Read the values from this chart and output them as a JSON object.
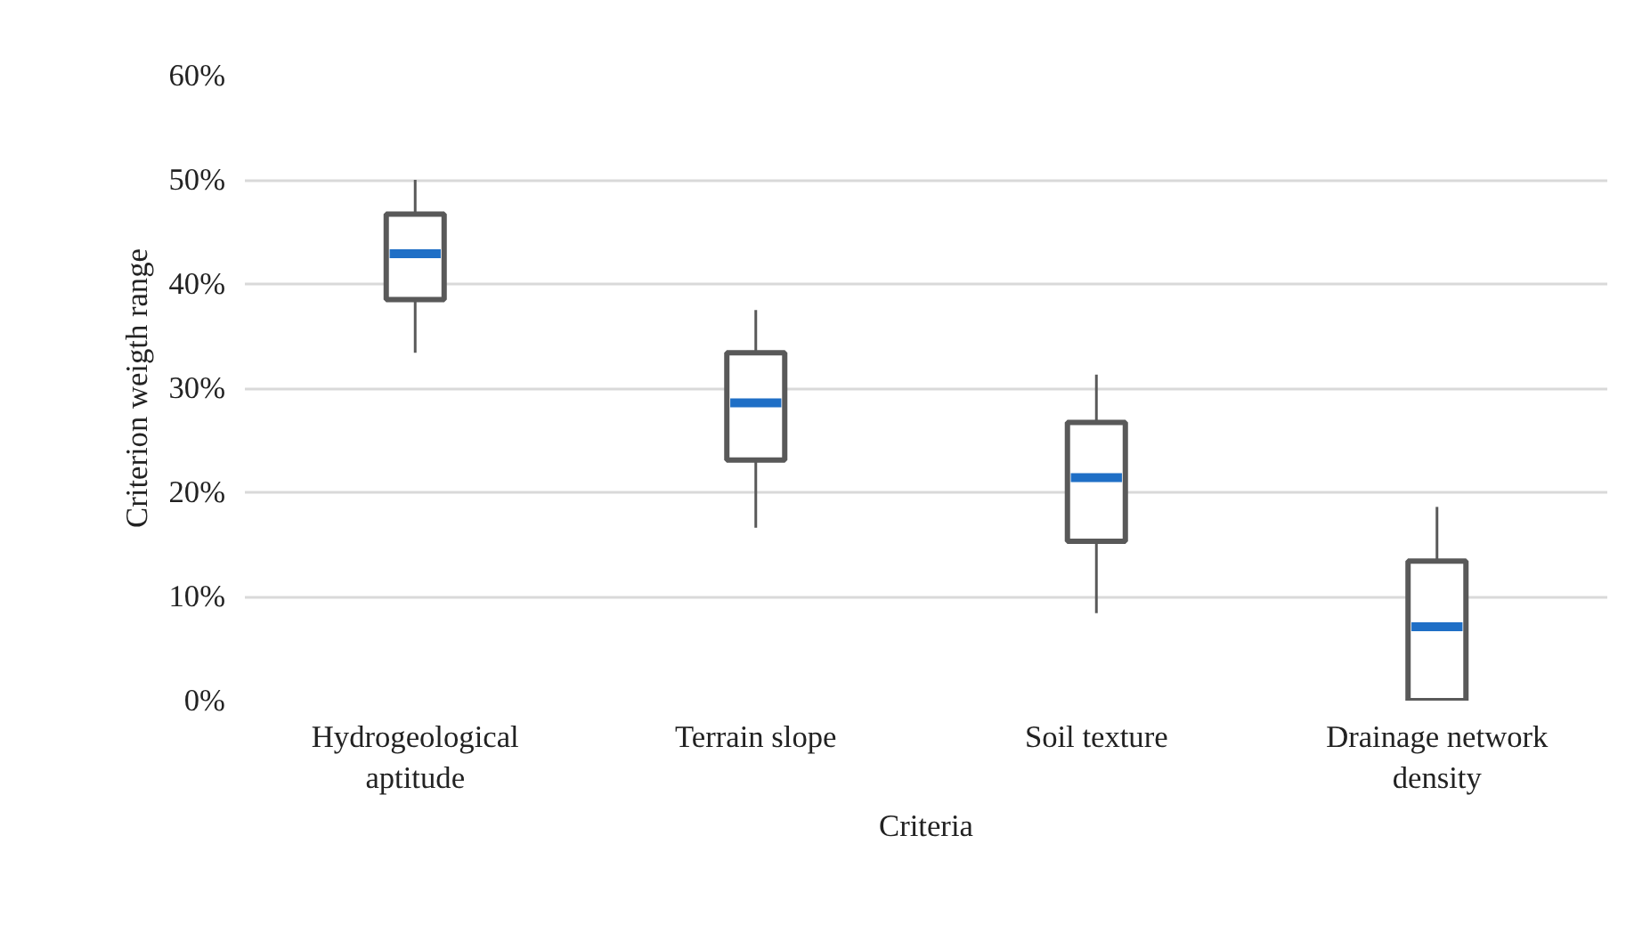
{
  "chart_data": {
    "type": "box",
    "xlabel": "Criteria",
    "ylabel": "Criterion weigth range",
    "categories": [
      "Hydrogeological aptitude",
      "Terrain slope",
      "Soil texture",
      "Drainage network density"
    ],
    "color": "#595959",
    "boxes": [
      {
        "low": 33.4,
        "q1": 38.5,
        "median": 42.9,
        "q3": 46.7,
        "high": 50
      },
      {
        "low": 16.6,
        "q1": 23.1,
        "median": 28.6,
        "q3": 33.4,
        "high": 37.5
      },
      {
        "low": 8.4,
        "q1": 15.3,
        "median": 21.4,
        "q3": 26.7,
        "high": 31.3
      },
      {
        "low": 0,
        "q1": 0,
        "median": 7.1,
        "q3": 13.4,
        "high": 18.6
      }
    ],
    "ylim": [
      0,
      60
    ],
    "yticks": [
      {
        "value": 0,
        "label": "0%"
      },
      {
        "value": 10,
        "label": "10%"
      },
      {
        "value": 20,
        "label": "20%"
      },
      {
        "value": 30,
        "label": "30%"
      },
      {
        "value": 40,
        "label": "40%"
      },
      {
        "value": 50,
        "label": "50%"
      },
      {
        "value": 60,
        "label": "60%"
      }
    ],
    "grid": "y"
  }
}
